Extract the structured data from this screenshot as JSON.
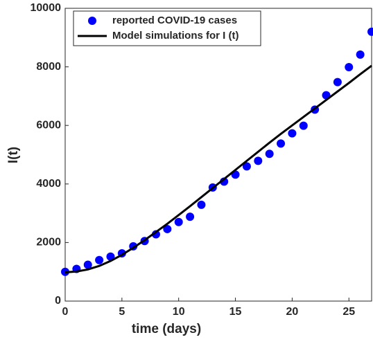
{
  "chart_data": {
    "type": "scatter-line",
    "x_label": "time (days)",
    "y_label": "I(t)",
    "x": [
      0,
      1,
      2,
      3,
      4,
      5,
      6,
      7,
      8,
      9,
      10,
      11,
      12,
      13,
      14,
      15,
      16,
      17,
      18,
      19,
      20,
      21,
      22,
      23,
      24,
      25,
      26,
      27
    ],
    "series": [
      {
        "name": "reported COVID-19 cases",
        "color": "#0000ff",
        "kind": "scatter",
        "values": [
          1000,
          1100,
          1240,
          1400,
          1520,
          1630,
          1870,
          2050,
          2280,
          2460,
          2700,
          2880,
          3290,
          3880,
          4080,
          4320,
          4600,
          4790,
          5030,
          5380,
          5730,
          5990,
          6540,
          7030,
          7480,
          7990,
          8420,
          9200
        ]
      },
      {
        "name": "Model simulations for I (t)",
        "color": "#000000",
        "kind": "line",
        "values": [
          980,
          1010,
          1080,
          1200,
          1370,
          1580,
          1820,
          2080,
          2360,
          2640,
          2940,
          3240,
          3550,
          3860,
          4170,
          4480,
          4790,
          5100,
          5410,
          5710,
          6000,
          6290,
          6580,
          6870,
          7160,
          7450,
          7750,
          8040
        ]
      }
    ],
    "xlim": [
      0,
      27
    ],
    "xticks": [
      0,
      5,
      10,
      15,
      20,
      25
    ],
    "ylim": [
      0,
      10000
    ],
    "yticks": [
      0,
      2000,
      4000,
      6000,
      8000,
      10000
    ],
    "legend": "top-left"
  }
}
